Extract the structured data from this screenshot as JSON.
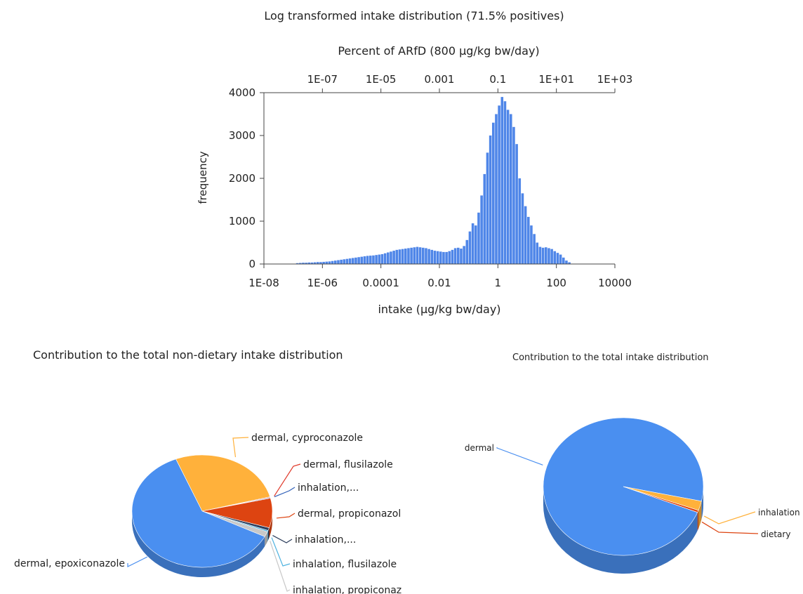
{
  "chart_data": [
    {
      "type": "bar",
      "title": "Log transformed intake distribution (71.5% positives)",
      "xlabel": "intake (µg/kg bw/day)",
      "ylabel": "frequency",
      "xscale": "log",
      "xlim_log10": [
        -8,
        4
      ],
      "ylim": [
        0,
        4000
      ],
      "bar_color": "#4f86e8",
      "x_ticks": [
        "1E-08",
        "1E-06",
        "0.0001",
        "0.01",
        "1",
        "100",
        "10000"
      ],
      "y_ticks": [
        "0",
        "1000",
        "2000",
        "3000",
        "4000"
      ],
      "top_axis": {
        "label": "Percent of ARfD (800 µg/kg bw/day)",
        "ticks": [
          "1E-07",
          "1E-05",
          "0.001",
          "0.1",
          "1E+01",
          "1E+03"
        ]
      },
      "bins_log10_start": -6.9,
      "bin_width_log10": 0.1,
      "values": [
        20,
        25,
        30,
        30,
        35,
        35,
        40,
        45,
        45,
        50,
        55,
        60,
        70,
        80,
        90,
        100,
        110,
        120,
        130,
        140,
        150,
        160,
        170,
        180,
        190,
        195,
        200,
        210,
        220,
        230,
        250,
        270,
        290,
        310,
        330,
        340,
        350,
        360,
        370,
        380,
        390,
        400,
        390,
        380,
        370,
        350,
        330,
        310,
        300,
        290,
        280,
        280,
        300,
        330,
        370,
        380,
        360,
        420,
        560,
        760,
        950,
        900,
        1200,
        1600,
        2100,
        2600,
        3000,
        3300,
        3500,
        3700,
        3900,
        3800,
        3600,
        3500,
        3200,
        2800,
        2000,
        1650,
        1350,
        1100,
        900,
        700,
        500,
        400,
        380,
        390,
        370,
        350,
        300,
        260,
        220,
        150,
        80,
        40
      ]
    },
    {
      "type": "pie",
      "title": "Contribution to the total non-dietary intake distribution",
      "slices": [
        {
          "label": "dermal, cyproconazole",
          "value": 27,
          "color": "#ffb13b"
        },
        {
          "label": "dermal, flusilazole",
          "value": 0.2,
          "color": "#e0392a"
        },
        {
          "label": "inhalation,...",
          "value": 0.2,
          "color": "#2f5fb8"
        },
        {
          "label": "dermal, propiconazole",
          "value": 8.5,
          "color": "#dd4411"
        },
        {
          "label": "inhalation,...",
          "value": 0.8,
          "color": "#2d3e5c"
        },
        {
          "label": "inhalation, flusilazole",
          "value": 0.4,
          "color": "#4fb3e0"
        },
        {
          "label": "inhalation, propiconazole",
          "value": 1.5,
          "color": "#c8c8c8"
        },
        {
          "label": "dermal, epoxiconazole",
          "value": 61.4,
          "color": "#4a8ff0"
        }
      ]
    },
    {
      "type": "pie",
      "title": "Contribution to the total intake distribution",
      "slices": [
        {
          "label": "dermal",
          "value": 97.3,
          "color": "#4a8ff0"
        },
        {
          "label": "inhalation",
          "value": 2.2,
          "color": "#ffb13b"
        },
        {
          "label": "dietary",
          "value": 0.5,
          "color": "#dd4411"
        }
      ]
    }
  ]
}
